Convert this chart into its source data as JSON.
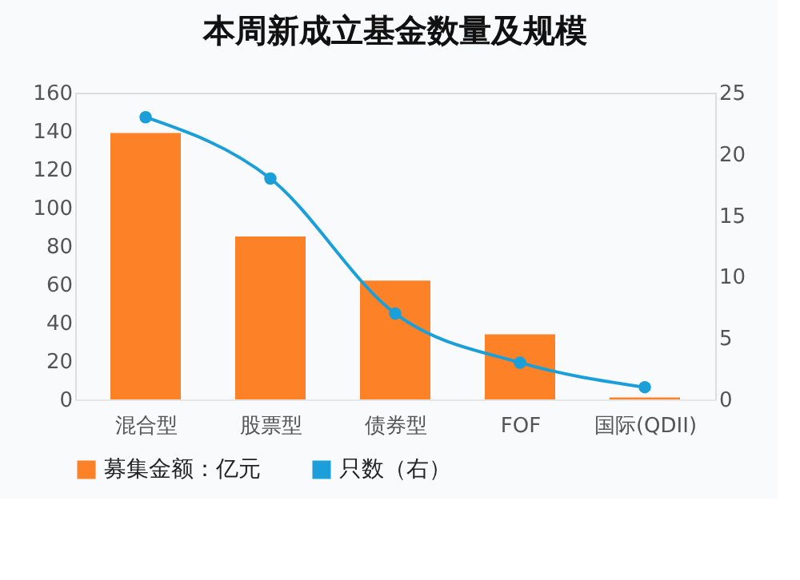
{
  "chart_data": {
    "type": "bar",
    "title": "本周新成立基金数量及规模",
    "categories": [
      "混合型",
      "股票型",
      "债券型",
      "FOF",
      "国际(QDII)"
    ],
    "series": [
      {
        "name": "募集金额：亿元",
        "color": "#fd8127",
        "values": [
          139,
          85,
          62,
          34,
          1
        ]
      },
      {
        "name": "只数（右）",
        "type": "line",
        "axis": "y2",
        "color": "#1a9fd8",
        "marker": "circle",
        "values": [
          23,
          18,
          7,
          3,
          1
        ]
      }
    ],
    "ylim": [
      0,
      160
    ],
    "yticks": [
      0,
      20,
      40,
      60,
      80,
      100,
      120,
      140,
      160
    ],
    "y2lim": [
      0,
      25
    ],
    "y2ticks": [
      0,
      5,
      10,
      15,
      20,
      25
    ],
    "grid": false,
    "legend": "bottom"
  }
}
